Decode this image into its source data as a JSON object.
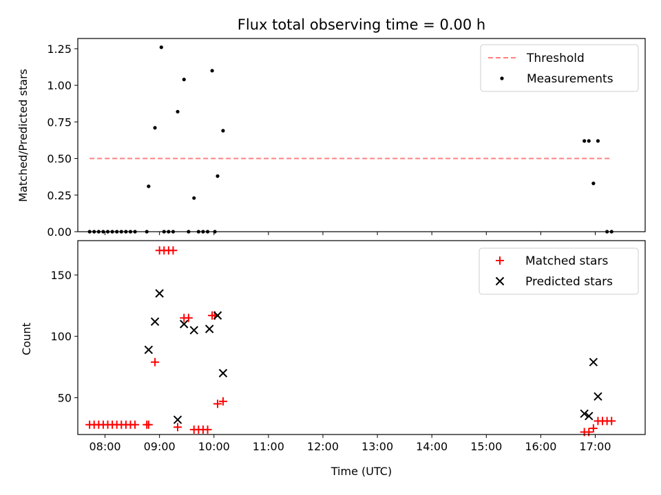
{
  "chart_data": [
    {
      "type": "scatter",
      "title": "Flux total observing time = 0.00 h",
      "xlabel": "",
      "ylabel": "Matched/Predicted stars",
      "xlim": [
        "07:30",
        "17:55"
      ],
      "ylim": [
        0,
        1.32
      ],
      "yticks": [
        0,
        0.25,
        0.5,
        0.75,
        1.0,
        1.25
      ],
      "ytick_labels": [
        "0.00",
        "0.25",
        "0.50",
        "0.75",
        "1.00",
        "1.25"
      ],
      "xticks": [
        "08:00",
        "09:00",
        "10:00",
        "11:00",
        "12:00",
        "13:00",
        "14:00",
        "15:00",
        "16:00",
        "17:00"
      ],
      "grid": false,
      "legend_position": "top-right",
      "series": [
        {
          "name": "Threshold",
          "kind": "line",
          "style": "dashed",
          "color": "#ff7f7f",
          "points": [
            [
              "07:43",
              0.5
            ],
            [
              "17:18",
              0.5
            ]
          ]
        },
        {
          "name": "Measurements",
          "kind": "scatter",
          "marker": "dot",
          "color": "#000000",
          "points": [
            [
              "07:43",
              0
            ],
            [
              "07:48",
              0
            ],
            [
              "07:53",
              0
            ],
            [
              "07:58",
              0
            ],
            [
              "08:03",
              0
            ],
            [
              "08:08",
              0
            ],
            [
              "08:13",
              0
            ],
            [
              "08:18",
              0
            ],
            [
              "08:23",
              0
            ],
            [
              "08:28",
              0
            ],
            [
              "08:33",
              0
            ],
            [
              "08:46",
              0
            ],
            [
              "08:48",
              0.31
            ],
            [
              "08:55",
              0.71
            ],
            [
              "09:02",
              1.26
            ],
            [
              "09:05",
              0
            ],
            [
              "09:10",
              0
            ],
            [
              "09:15",
              0
            ],
            [
              "09:20",
              0.82
            ],
            [
              "09:27",
              1.04
            ],
            [
              "09:32",
              0
            ],
            [
              "09:38",
              0.23
            ],
            [
              "09:43",
              0
            ],
            [
              "09:48",
              0
            ],
            [
              "09:53",
              0
            ],
            [
              "09:58",
              1.1
            ],
            [
              "10:01",
              0
            ],
            [
              "10:04",
              0.38
            ],
            [
              "10:10",
              0.69
            ],
            [
              "16:48",
              0.62
            ],
            [
              "16:53",
              0.62
            ],
            [
              "16:58",
              0.33
            ],
            [
              "17:03",
              0.62
            ],
            [
              "17:13",
              0
            ],
            [
              "17:18",
              0
            ]
          ]
        }
      ]
    },
    {
      "type": "scatter",
      "title": "",
      "xlabel": "Time (UTC)",
      "ylabel": "Count",
      "xlim": [
        "07:30",
        "17:55"
      ],
      "ylim": [
        20,
        178
      ],
      "yticks": [
        50,
        100,
        150
      ],
      "ytick_labels": [
        "50",
        "100",
        "150"
      ],
      "xticks": [
        "08:00",
        "09:00",
        "10:00",
        "11:00",
        "12:00",
        "13:00",
        "14:00",
        "15:00",
        "16:00",
        "17:00"
      ],
      "xtick_labels": [
        "08:00",
        "09:00",
        "10:00",
        "11:00",
        "12:00",
        "13:00",
        "14:00",
        "15:00",
        "16:00",
        "17:00"
      ],
      "grid": false,
      "legend_position": "top-right",
      "series": [
        {
          "name": "Matched stars",
          "kind": "scatter",
          "marker": "plus",
          "color": "#ff0000",
          "points": [
            [
              "07:43",
              28
            ],
            [
              "07:48",
              28
            ],
            [
              "07:53",
              28
            ],
            [
              "07:58",
              28
            ],
            [
              "08:03",
              28
            ],
            [
              "08:08",
              28
            ],
            [
              "08:13",
              28
            ],
            [
              "08:18",
              28
            ],
            [
              "08:23",
              28
            ],
            [
              "08:28",
              28
            ],
            [
              "08:33",
              28
            ],
            [
              "08:46",
              28
            ],
            [
              "08:48",
              28
            ],
            [
              "08:55",
              79
            ],
            [
              "09:00",
              170
            ],
            [
              "09:05",
              170
            ],
            [
              "09:10",
              170
            ],
            [
              "09:15",
              170
            ],
            [
              "09:20",
              26
            ],
            [
              "09:27",
              115
            ],
            [
              "09:32",
              115
            ],
            [
              "09:38",
              24
            ],
            [
              "09:43",
              24
            ],
            [
              "09:48",
              24
            ],
            [
              "09:53",
              24
            ],
            [
              "09:58",
              117
            ],
            [
              "10:01",
              117
            ],
            [
              "10:04",
              45
            ],
            [
              "10:10",
              47
            ],
            [
              "16:48",
              22
            ],
            [
              "16:53",
              22
            ],
            [
              "16:58",
              25
            ],
            [
              "17:03",
              31
            ],
            [
              "17:08",
              31
            ],
            [
              "17:13",
              31
            ],
            [
              "17:18",
              31
            ]
          ]
        },
        {
          "name": "Predicted stars",
          "kind": "scatter",
          "marker": "x",
          "color": "#000000",
          "points": [
            [
              "08:48",
              89
            ],
            [
              "08:55",
              112
            ],
            [
              "09:00",
              135
            ],
            [
              "09:20",
              32
            ],
            [
              "09:27",
              110
            ],
            [
              "09:38",
              105
            ],
            [
              "09:55",
              106
            ],
            [
              "10:04",
              117
            ],
            [
              "10:10",
              70
            ],
            [
              "16:48",
              37
            ],
            [
              "16:53",
              35
            ],
            [
              "16:58",
              79
            ],
            [
              "17:03",
              51
            ]
          ]
        }
      ]
    }
  ]
}
